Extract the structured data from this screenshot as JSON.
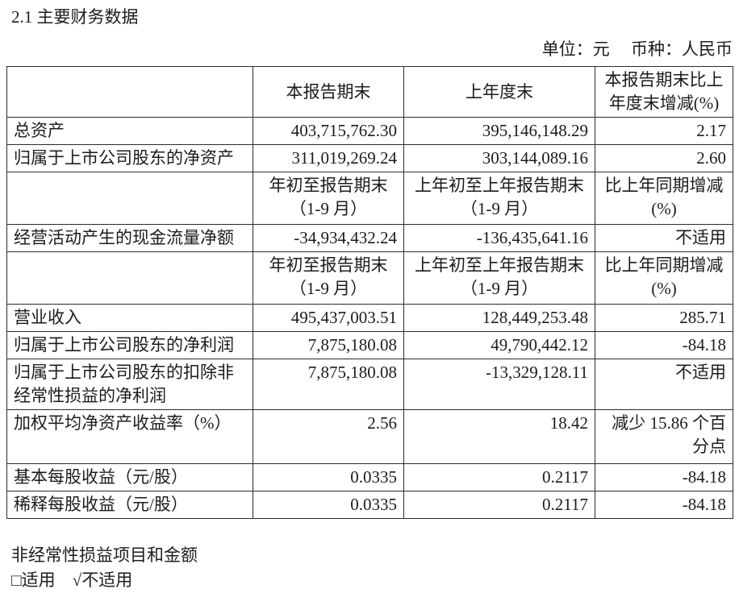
{
  "page": {
    "section_title": "2.1 主要财务数据",
    "unit_note": "单位：元　 币种：人民币",
    "footer_line1": "非经常性损益项目和金额",
    "footer_line2": "□适用　√不适用"
  },
  "table": {
    "header": {
      "c1": "",
      "c2": "本报告期末",
      "c3": "上年度末",
      "c4": "本报告期末比上\n年度末增减(%)"
    },
    "rows": [
      {
        "label": "总资产",
        "c2": "403,715,762.30",
        "c3": "395,146,148.29",
        "c4": "2.17"
      },
      {
        "label": "归属于上市公司股东的净资产",
        "c2": "311,019,269.24",
        "c3": "303,144,089.16",
        "c4": "2.60"
      },
      {
        "label": "",
        "c2": "年初至报告期末\n（1-9 月）",
        "c3": "上年初至上年报告期末\n（1-9 月）",
        "c4": "比上年同期增减\n(%)"
      },
      {
        "label": "经营活动产生的现金流量净额",
        "c2": "-34,934,432.24",
        "c3": "-136,435,641.16",
        "c4": "不适用"
      },
      {
        "label": "",
        "c2": "年初至报告期末\n（1-9 月）",
        "c3": "上年初至上年报告期末\n（1-9 月）",
        "c4": "比上年同期增减\n(%)"
      },
      {
        "label": "营业收入",
        "c2": "495,437,003.51",
        "c3": "128,449,253.48",
        "c4": "285.71"
      },
      {
        "label": "归属于上市公司股东的净利润",
        "c2": "7,875,180.08",
        "c3": "49,790,442.12",
        "c4": "-84.18"
      },
      {
        "label": "归属于上市公司股东的扣除非\n经常性损益的净利润",
        "c2": "7,875,180.08",
        "c3": "-13,329,128.11",
        "c4": "不适用"
      },
      {
        "label": "加权平均净资产收益率（%）",
        "c2": "2.56",
        "c3": "18.42",
        "c4": "减少 15.86 个百\n分点"
      },
      {
        "label": "基本每股收益（元/股）",
        "c2": "0.0335",
        "c3": "0.2117",
        "c4": "-84.18"
      },
      {
        "label": "稀释每股收益（元/股）",
        "c2": "0.0335",
        "c3": "0.2117",
        "c4": "-84.18"
      }
    ]
  }
}
